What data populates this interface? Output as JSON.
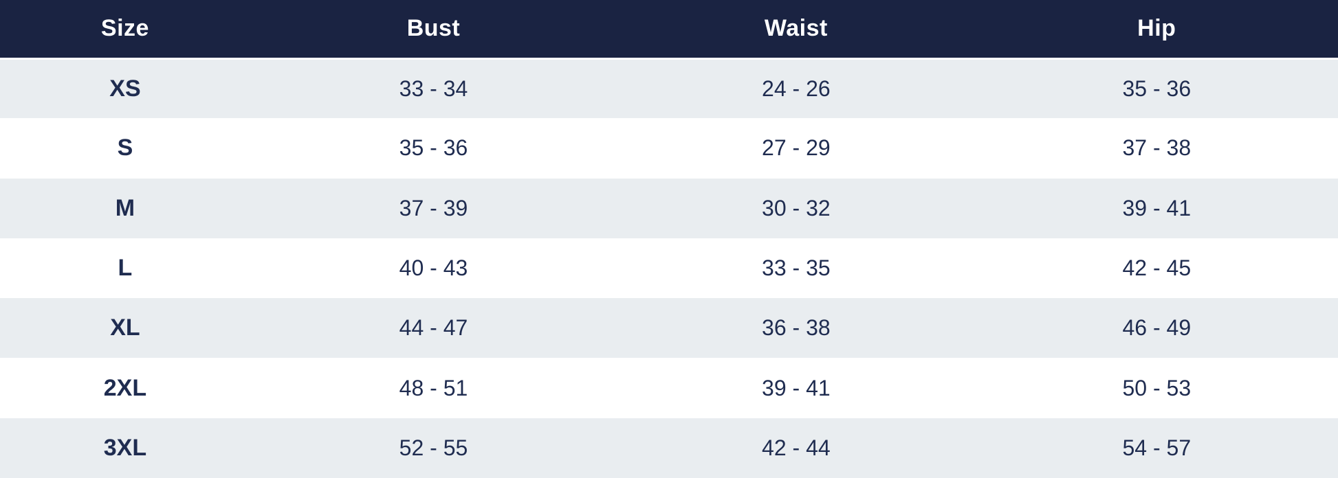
{
  "table": {
    "columns": [
      "Size",
      "Bust",
      "Waist",
      "Hip"
    ],
    "rows": [
      {
        "size": "XS",
        "bust": "33 - 34",
        "waist": "24 - 26",
        "hip": "35 - 36"
      },
      {
        "size": "S",
        "bust": "35 - 36",
        "waist": "27 - 29",
        "hip": "37 - 38"
      },
      {
        "size": "M",
        "bust": "37 - 39",
        "waist": "30 - 32",
        "hip": "39 - 41"
      },
      {
        "size": "L",
        "bust": "40 - 43",
        "waist": "33 - 35",
        "hip": "42 - 45"
      },
      {
        "size": "XL",
        "bust": "44 - 47",
        "waist": "36 - 38",
        "hip": "46 - 49"
      },
      {
        "size": "2XL",
        "bust": "48 - 51",
        "waist": "39 - 41",
        "hip": "50 - 53"
      },
      {
        "size": "3XL",
        "bust": "52 - 55",
        "waist": "42 - 44",
        "hip": "54 - 57"
      }
    ]
  },
  "colors": {
    "header_bg": "#1a2342",
    "header_text": "#ffffff",
    "row_alt_bg": "#e9edf0",
    "row_bg": "#ffffff",
    "cell_text": "#1f2c50",
    "separator": "#ffffff"
  }
}
